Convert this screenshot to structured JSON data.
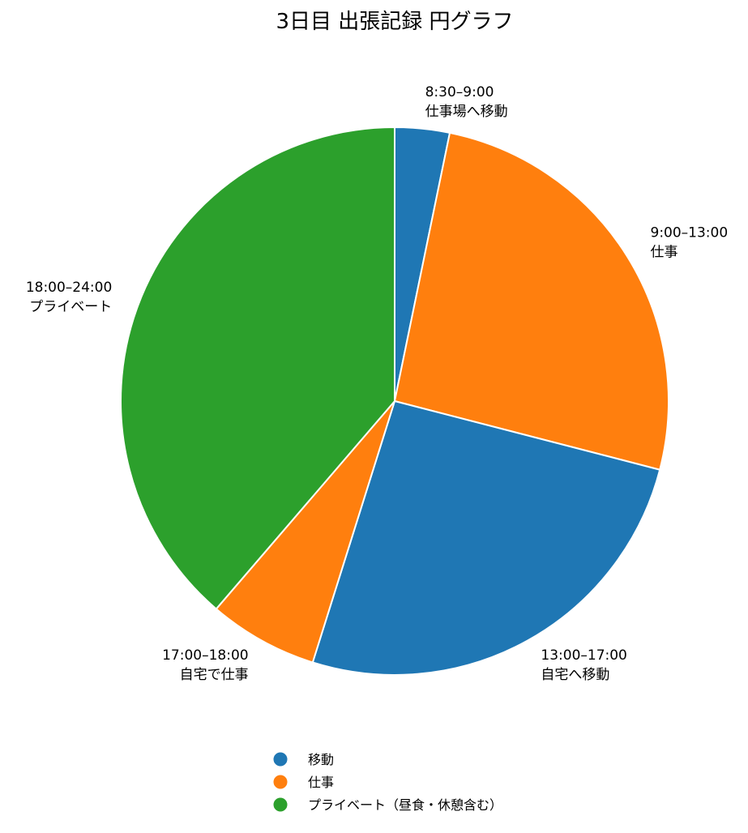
{
  "chart_data": {
    "type": "pie",
    "title": "3日目 出張記録 円グラフ",
    "unit": "hours",
    "start_angle": "12 o'clock",
    "direction": "clockwise",
    "slices": [
      {
        "time": "8:30–9:00",
        "activity": "仕事場へ移動",
        "category": "移動",
        "value": 0.5,
        "color": "#1f77b4"
      },
      {
        "time": "9:00–13:00",
        "activity": "仕事",
        "category": "仕事",
        "value": 4,
        "color": "#ff7f0e"
      },
      {
        "time": "13:00–17:00",
        "activity": "自宅へ移動",
        "category": "移動",
        "value": 4,
        "color": "#1f77b4"
      },
      {
        "time": "17:00–18:00",
        "activity": "自宅で仕事",
        "category": "仕事",
        "value": 1,
        "color": "#ff7f0e"
      },
      {
        "time": "18:00–24:00",
        "activity": "プライベート",
        "category": "プライベート（昼食・休憩含む）",
        "value": 6,
        "color": "#2ca02c"
      }
    ],
    "legend": {
      "placement": "bottom-center",
      "entries": [
        {
          "label": "移動",
          "color": "#1f77b4"
        },
        {
          "label": "仕事",
          "color": "#ff7f0e"
        },
        {
          "label": "プライベート（昼食・休憩含む）",
          "color": "#2ca02c"
        }
      ]
    }
  }
}
